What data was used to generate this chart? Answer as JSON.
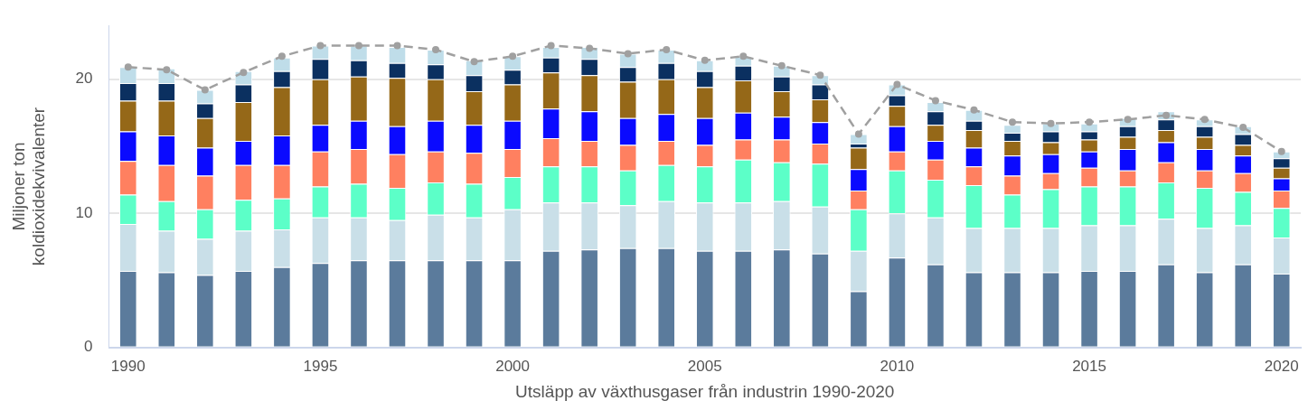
{
  "chart_data": {
    "type": "bar",
    "stacked": true,
    "xlabel": "Utsläpp av växthusgaser från industrin 1990-2020",
    "ylabel": "Miljoner ton\nkoldioxidekvivalenter",
    "categories": [
      "1990",
      null,
      null,
      null,
      null,
      "1995",
      null,
      null,
      null,
      null,
      "2000",
      null,
      null,
      null,
      null,
      "2005",
      null,
      null,
      null,
      null,
      "2010",
      null,
      null,
      null,
      null,
      "2015",
      null,
      null,
      null,
      null,
      "2020"
    ],
    "ylim": [
      0,
      24
    ],
    "yticks": [
      0,
      10,
      20
    ],
    "grid": "y",
    "legend": false,
    "series": [
      {
        "color": "#5b7b9c",
        "values": [
          5.7,
          5.6,
          5.4,
          5.7,
          6.0,
          6.3,
          6.5,
          6.5,
          6.5,
          6.5,
          6.5,
          7.2,
          7.3,
          7.4,
          7.4,
          7.2,
          7.2,
          7.3,
          7.0,
          4.2,
          6.7,
          6.2,
          5.6,
          5.6,
          5.6,
          5.7,
          5.7,
          6.2,
          5.6,
          6.2,
          5.5
        ]
      },
      {
        "color": "#c9dfe8",
        "values": [
          3.5,
          3.1,
          2.7,
          3.0,
          2.8,
          3.4,
          3.2,
          3.0,
          3.4,
          3.2,
          3.8,
          3.6,
          3.5,
          3.2,
          3.5,
          3.6,
          3.6,
          3.6,
          3.5,
          3.0,
          3.3,
          3.5,
          3.3,
          3.3,
          3.3,
          3.4,
          3.4,
          3.4,
          3.3,
          2.9,
          2.7
        ]
      },
      {
        "color": "#5cffc8",
        "values": [
          2.2,
          2.2,
          2.2,
          2.3,
          2.3,
          2.3,
          2.5,
          2.4,
          2.4,
          2.5,
          2.4,
          2.7,
          2.7,
          2.6,
          2.7,
          2.7,
          3.2,
          2.9,
          3.2,
          3.1,
          3.2,
          2.8,
          3.2,
          2.5,
          2.9,
          2.9,
          2.9,
          2.7,
          3.0,
          2.5,
          2.2
        ]
      },
      {
        "color": "#ff8060",
        "values": [
          2.5,
          2.7,
          2.5,
          2.6,
          2.5,
          2.6,
          2.6,
          2.5,
          2.3,
          2.3,
          2.1,
          2.1,
          1.9,
          1.9,
          1.8,
          1.6,
          1.5,
          1.7,
          1.5,
          1.4,
          1.4,
          1.5,
          1.4,
          1.4,
          1.2,
          1.4,
          1.2,
          1.5,
          1.3,
          1.4,
          1.3
        ]
      },
      {
        "color": "#0a0aff",
        "values": [
          2.2,
          2.2,
          2.1,
          1.8,
          2.2,
          2.0,
          2.1,
          2.1,
          2.3,
          2.1,
          2.1,
          2.2,
          2.2,
          2.0,
          2.0,
          2.0,
          2.0,
          1.7,
          1.6,
          1.6,
          1.9,
          1.4,
          1.4,
          1.5,
          1.4,
          1.2,
          1.6,
          1.5,
          1.6,
          1.3,
          0.9
        ]
      },
      {
        "color": "#956818",
        "values": [
          2.3,
          2.6,
          2.2,
          2.9,
          3.6,
          3.4,
          3.3,
          3.6,
          3.1,
          2.5,
          2.7,
          2.7,
          2.7,
          2.7,
          2.6,
          2.3,
          2.4,
          1.9,
          1.7,
          1.6,
          1.5,
          1.2,
          1.3,
          1.1,
          0.9,
          0.9,
          0.9,
          0.9,
          0.9,
          0.8,
          0.8
        ]
      },
      {
        "color": "#0b3060",
        "values": [
          1.3,
          1.3,
          1.1,
          1.3,
          1.2,
          1.5,
          1.2,
          1.1,
          1.1,
          1.2,
          1.1,
          1.1,
          1.2,
          1.1,
          1.2,
          1.2,
          1.1,
          1.1,
          1.1,
          0.3,
          0.8,
          1.0,
          0.7,
          0.6,
          0.8,
          0.6,
          0.8,
          0.8,
          0.8,
          0.8,
          0.7
        ]
      },
      {
        "color": "#bfdde9",
        "values": [
          1.2,
          1.1,
          1.0,
          1.0,
          1.0,
          1.0,
          1.1,
          1.2,
          1.1,
          1.1,
          1.0,
          0.8,
          0.9,
          1.0,
          1.0,
          0.8,
          0.7,
          0.8,
          0.7,
          0.7,
          0.8,
          0.7,
          0.8,
          0.6,
          0.6,
          0.6,
          0.6,
          0.6,
          0.5,
          0.6,
          0.5
        ]
      },
      {
        "type": "line",
        "color": "#a0a0a0",
        "line_style": "dashed",
        "marker": "circle",
        "values": [
          20.9,
          20.7,
          19.2,
          20.5,
          21.7,
          22.5,
          22.5,
          22.5,
          22.2,
          21.3,
          21.7,
          22.5,
          22.3,
          21.9,
          22.2,
          21.4,
          21.7,
          21.0,
          20.3,
          15.9,
          19.6,
          18.4,
          17.7,
          16.8,
          16.7,
          16.8,
          17.0,
          17.3,
          17.0,
          16.4,
          14.6
        ]
      }
    ]
  }
}
